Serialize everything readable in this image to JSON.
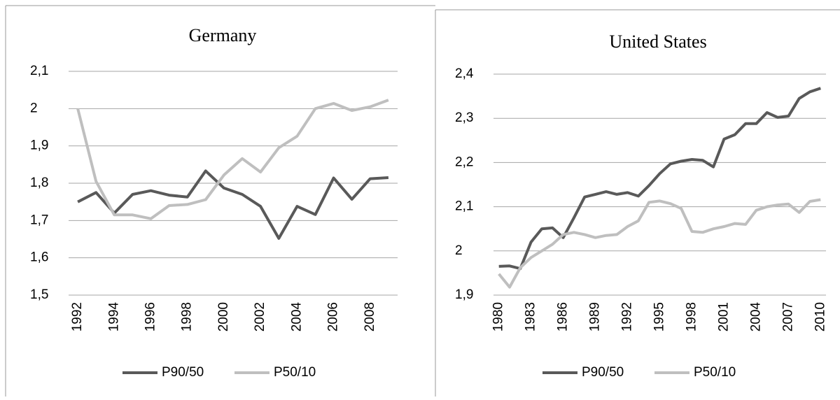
{
  "chart_data": [
    {
      "type": "line",
      "title": "Germany",
      "categories": [
        "1992",
        null,
        "1994",
        null,
        "1996",
        null,
        "1998",
        null,
        "2000",
        null,
        "2002",
        null,
        "2004",
        null,
        "2006",
        null,
        "2008",
        null
      ],
      "series": [
        {
          "name": "P90/50",
          "color": "#595959",
          "values": [
            1.75,
            1.775,
            1.72,
            1.77,
            1.78,
            1.768,
            1.763,
            1.833,
            1.787,
            1.77,
            1.738,
            1.652,
            1.738,
            1.716,
            1.814,
            1.757,
            1.812,
            1.815
          ]
        },
        {
          "name": "P50/10",
          "color": "#bfbfbf",
          "values": [
            2.0,
            1.805,
            1.715,
            1.715,
            1.705,
            1.74,
            1.743,
            1.756,
            1.822,
            1.866,
            1.83,
            1.895,
            1.926,
            2.0,
            2.014,
            1.995,
            2.005,
            2.023
          ]
        }
      ],
      "ylim": [
        1.5,
        2.1
      ],
      "yticks": [
        {
          "value": 1.5,
          "label": "1,5"
        },
        {
          "value": 1.6,
          "label": "1,6"
        },
        {
          "value": 1.7,
          "label": "1,7"
        },
        {
          "value": 1.8,
          "label": "1,8"
        },
        {
          "value": 1.9,
          "label": "1,9"
        },
        2,
        {
          "value": 2.1,
          "label": "2,1"
        }
      ],
      "grid": true,
      "legend": "bottom"
    },
    {
      "type": "line",
      "title": "United States",
      "categories": [
        "1980",
        null,
        null,
        "1983",
        null,
        null,
        "1986",
        null,
        null,
        "1989",
        null,
        null,
        "1992",
        null,
        null,
        "1995",
        null,
        null,
        "1998",
        null,
        null,
        "2001",
        null,
        null,
        "2004",
        null,
        null,
        "2007",
        null,
        null,
        "2010"
      ],
      "series": [
        {
          "name": "P90/50",
          "color": "#595959",
          "values": [
            1.965,
            1.966,
            1.96,
            2.02,
            2.05,
            2.052,
            2.03,
            2.075,
            2.122,
            2.128,
            2.134,
            2.128,
            2.132,
            2.124,
            2.148,
            2.175,
            2.197,
            2.203,
            2.207,
            2.205,
            2.19,
            2.253,
            2.263,
            2.288,
            2.288,
            2.313,
            2.302,
            2.305,
            2.345,
            2.36,
            2.368
          ]
        },
        {
          "name": "P50/10",
          "color": "#bfbfbf",
          "values": [
            1.948,
            1.918,
            1.962,
            1.985,
            2.0,
            2.015,
            2.037,
            2.042,
            2.037,
            2.03,
            2.035,
            2.037,
            2.055,
            2.068,
            2.11,
            2.113,
            2.107,
            2.096,
            2.044,
            2.042,
            2.05,
            2.055,
            2.062,
            2.06,
            2.092,
            2.1,
            2.104,
            2.106,
            2.087,
            2.112,
            2.116
          ]
        }
      ],
      "ylim": [
        1.9,
        2.4
      ],
      "yticks": [
        {
          "value": 1.9,
          "label": "1,9"
        },
        2,
        {
          "value": 2.1,
          "label": "2,1"
        },
        {
          "value": 2.2,
          "label": "2,2"
        },
        {
          "value": 2.3,
          "label": "2,3"
        },
        {
          "value": 2.4,
          "label": "2,4"
        }
      ],
      "grid": true,
      "legend": "bottom"
    }
  ]
}
